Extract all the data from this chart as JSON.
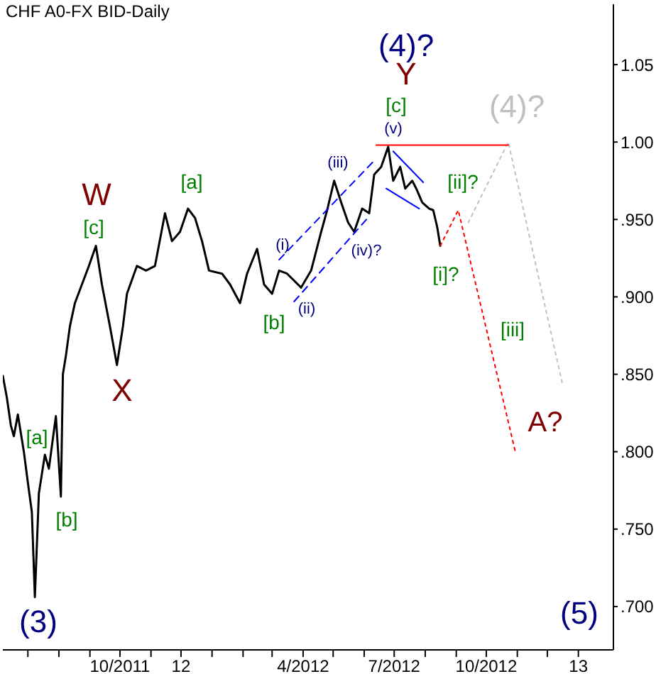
{
  "chart_data": {
    "type": "line",
    "title": "CHF A0-FX BID-Daily",
    "xlim": [
      "2011-06-06",
      "2013-02-05"
    ],
    "ylim": [
      0.672,
      1.089
    ],
    "xticks": [
      {
        "value": "2011-07-01",
        "label": null
      },
      {
        "value": "2011-08-01",
        "label": null
      },
      {
        "value": "2011-09-01",
        "label": null
      },
      {
        "value": "2011-10-01",
        "label": "10/2011"
      },
      {
        "value": "2011-11-01",
        "label": null
      },
      {
        "value": "2011-12-01",
        "label": "12"
      },
      {
        "value": "2012-01-01",
        "label": null
      },
      {
        "value": "2012-02-01",
        "label": null
      },
      {
        "value": "2012-03-01",
        "label": null
      },
      {
        "value": "2012-04-01",
        "label": "4/2012"
      },
      {
        "value": "2012-05-01",
        "label": null
      },
      {
        "value": "2012-06-01",
        "label": null
      },
      {
        "value": "2012-07-01",
        "label": "7/2012"
      },
      {
        "value": "2012-08-01",
        "label": null
      },
      {
        "value": "2012-09-01",
        "label": null
      },
      {
        "value": "2012-10-01",
        "label": "10/2012"
      },
      {
        "value": "2012-11-01",
        "label": null
      },
      {
        "value": "2012-12-01",
        "label": null
      },
      {
        "value": "2013-01-01",
        "label": "13"
      }
    ],
    "yticks": [
      {
        "value": 0.7,
        "label": ".700"
      },
      {
        "value": 0.75,
        "label": ".750"
      },
      {
        "value": 0.8,
        "label": ".800"
      },
      {
        "value": 0.85,
        "label": ".850"
      },
      {
        "value": 0.9,
        "label": ".900"
      },
      {
        "value": 0.95,
        "label": ".950"
      },
      {
        "value": 1.0,
        "label": "1.00"
      },
      {
        "value": 1.05,
        "label": "1.05"
      }
    ],
    "grid": false,
    "legend": false,
    "marker": "none",
    "series": [
      {
        "color": "#000000",
        "line_style": "solid",
        "x": [
          "2011-06-06",
          "2011-06-10",
          "2011-06-14",
          "2011-06-17",
          "2011-06-21",
          "2011-06-27",
          "2011-07-01",
          "2011-07-05",
          "2011-07-08",
          "2011-07-12",
          "2011-07-18",
          "2011-07-22",
          "2011-07-29",
          "2011-08-03",
          "2011-08-05",
          "2011-08-08",
          "2011-08-12",
          "2011-08-17",
          "2011-08-24",
          "2011-08-31",
          "2011-09-07",
          "2011-09-13",
          "2011-09-21",
          "2011-09-28",
          "2011-10-04",
          "2011-10-08",
          "2011-10-18",
          "2011-10-27",
          "2011-11-05",
          "2011-11-15",
          "2011-11-22",
          "2011-11-30",
          "2011-12-08",
          "2011-12-15",
          "2011-12-22",
          "2011-12-29",
          "2012-01-11",
          "2012-01-19",
          "2012-01-29",
          "2012-02-05",
          "2012-02-15",
          "2012-02-22",
          "2012-03-01",
          "2012-03-08",
          "2012-03-16",
          "2012-03-30",
          "2012-04-09",
          "2012-04-19",
          "2012-04-25",
          "2012-05-02",
          "2012-05-09",
          "2012-05-16",
          "2012-05-22",
          "2012-05-30",
          "2012-06-06",
          "2012-06-11",
          "2012-06-18",
          "2012-06-25",
          "2012-06-30",
          "2012-07-07",
          "2012-07-12",
          "2012-07-19",
          "2012-07-23",
          "2012-07-29",
          "2012-08-05",
          "2012-08-09",
          "2012-08-13",
          "2012-08-16"
        ],
        "values": [
          0.849,
          0.835,
          0.817,
          0.81,
          0.824,
          0.8,
          0.78,
          0.761,
          0.706,
          0.773,
          0.798,
          0.789,
          0.823,
          0.771,
          0.85,
          0.862,
          0.881,
          0.896,
          0.908,
          0.92,
          0.933,
          0.908,
          0.881,
          0.856,
          0.881,
          0.902,
          0.92,
          0.917,
          0.92,
          0.954,
          0.936,
          0.942,
          0.957,
          0.951,
          0.936,
          0.917,
          0.915,
          0.908,
          0.896,
          0.915,
          0.931,
          0.908,
          0.902,
          0.917,
          0.915,
          0.906,
          0.917,
          0.942,
          0.956,
          0.975,
          0.961,
          0.948,
          0.942,
          0.957,
          0.954,
          0.979,
          0.984,
          0.997,
          0.975,
          0.984,
          0.97,
          0.975,
          0.97,
          0.961,
          0.957,
          0.956,
          0.945,
          0.933
        ]
      },
      {
        "color": "#ff0000",
        "line_style": "dotted",
        "x": [
          "2012-08-16",
          "2012-09-03",
          "2012-10-30"
        ],
        "values": [
          0.933,
          0.956,
          0.8
        ]
      },
      {
        "color": "#c0c0c0",
        "line_style": "dotted",
        "x": [
          "2012-09-13",
          "2012-10-23",
          "2012-12-16"
        ],
        "values": [
          0.948,
          1.0,
          0.844
        ]
      },
      {
        "color": "#ff0000",
        "line_style": "solid",
        "x": [
          "2012-06-13",
          "2012-10-23"
        ],
        "values": [
          0.998,
          0.998
        ]
      },
      {
        "color": "#0000ff",
        "line_style": "dashed",
        "x": [
          "2012-03-08",
          "2012-06-11"
        ],
        "values": [
          0.924,
          0.988
        ]
      },
      {
        "color": "#0000ff",
        "line_style": "dashed",
        "x": [
          "2012-03-23",
          "2012-06-06"
        ],
        "values": [
          0.897,
          0.952
        ]
      },
      {
        "color": "#0000ff",
        "line_style": "solid",
        "x": [
          "2012-06-30",
          "2012-07-30"
        ],
        "values": [
          0.994,
          0.974
        ]
      },
      {
        "color": "#0000ff",
        "line_style": "solid",
        "x": [
          "2012-06-23",
          "2012-07-26"
        ],
        "values": [
          0.97,
          0.957
        ]
      }
    ],
    "annotations": [
      "(4)?",
      "Y",
      "[c]",
      "(v)",
      "(4)?",
      "[ii]?",
      "[i]?",
      "[iii]",
      "A?",
      "(5)",
      "(3)",
      "[a]",
      "[b]",
      "X",
      "W",
      "[c]",
      "[a]",
      "[b]",
      "(i)",
      "(ii)",
      "(iii)",
      "(iv)?"
    ]
  }
}
